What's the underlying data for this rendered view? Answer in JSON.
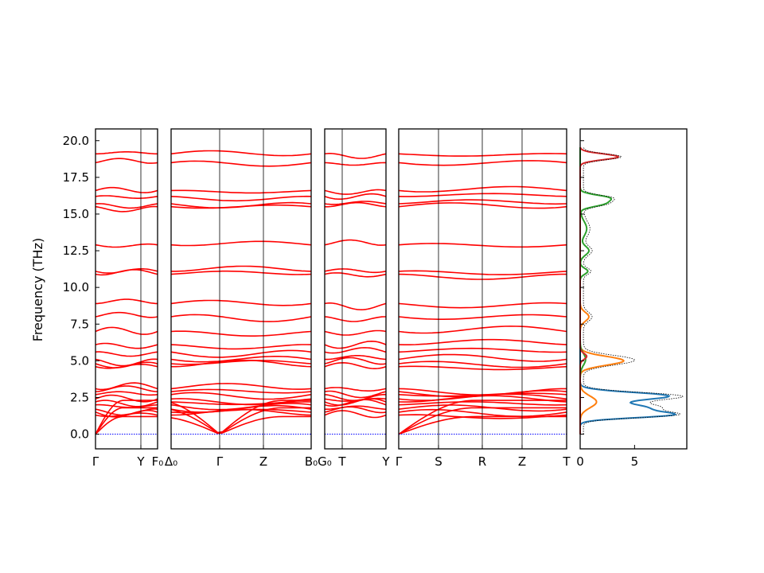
{
  "chart_data": {
    "type": "line",
    "ylabel": "Frequency (THz)",
    "ylim": [
      -1.0,
      20.8
    ],
    "yticks": [
      "0.0",
      "2.5",
      "5.0",
      "7.5",
      "10.0",
      "12.5",
      "15.0",
      "17.5",
      "20.0"
    ],
    "band_color": "#ff0000",
    "zero_line_color": "#0000ff",
    "panels": [
      {
        "labels": [
          "Γ",
          "Y",
          "F₀"
        ]
      },
      {
        "labels": [
          "Δ₀",
          "Γ",
          "Z",
          "B₀"
        ]
      },
      {
        "labels": [
          "G₀",
          "T",
          "Y"
        ]
      },
      {
        "labels": [
          "Γ",
          "S",
          "R",
          "Z",
          "T"
        ]
      }
    ],
    "dos": {
      "xlim": [
        0,
        9.8
      ],
      "xticks": [
        "0",
        "5"
      ],
      "series_colors": [
        "#1f77b4",
        "#ff7f0e",
        "#2ca02c",
        "#d62728"
      ],
      "total_color": "#000000"
    }
  }
}
